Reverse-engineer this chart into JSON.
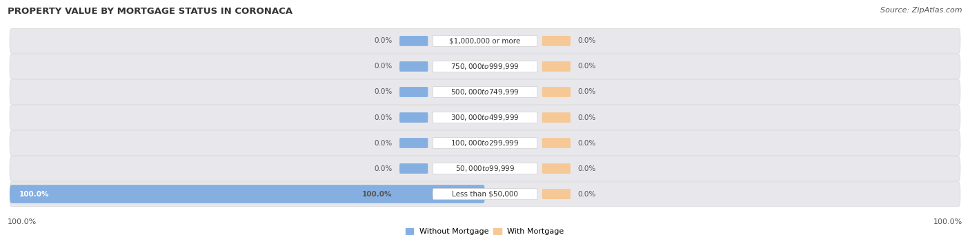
{
  "title": "PROPERTY VALUE BY MORTGAGE STATUS IN CORONACA",
  "source": "Source: ZipAtlas.com",
  "categories": [
    "Less than $50,000",
    "$50,000 to $99,999",
    "$100,000 to $299,999",
    "$300,000 to $499,999",
    "$500,000 to $749,999",
    "$750,000 to $999,999",
    "$1,000,000 or more"
  ],
  "without_mortgage": [
    100.0,
    0.0,
    0.0,
    0.0,
    0.0,
    0.0,
    0.0
  ],
  "with_mortgage": [
    0.0,
    0.0,
    0.0,
    0.0,
    0.0,
    0.0,
    0.0
  ],
  "color_without": "#85afe0",
  "color_with": "#f5c896",
  "bg_color": "#ffffff",
  "row_bg_color": "#e8e8ec",
  "title_fontsize": 9.5,
  "source_fontsize": 8,
  "label_fontsize": 7.5,
  "cat_fontsize": 7.5,
  "legend_fontsize": 8,
  "axis_label_fontsize": 8,
  "figsize": [
    14.06,
    3.41
  ],
  "dpi": 100
}
